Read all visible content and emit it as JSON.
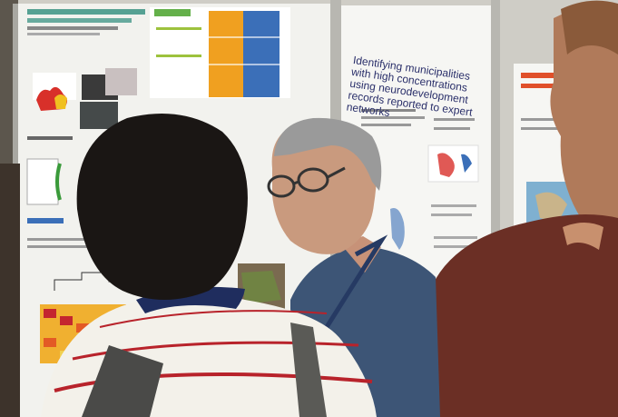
{
  "photo": {
    "poster_right_heading": "Identifying municipalities with high concentrations using neurodevelopment records reported to expert networks",
    "palette": {
      "wall": "#d9d8d2",
      "poster_bg": "#f4f4f1",
      "teal_title": "#2e8c7c",
      "heatmap_orange": "#f0a020",
      "heatmap_blue": "#3b6fb8",
      "heatmap_red": "#c4262f",
      "shirt_stripe_white": "#f3f1ea",
      "shirt_stripe_red": "#b8232b",
      "polo_blue": "#3d5576",
      "brown_shirt": "#6b2f25",
      "hair_black": "#1a1614",
      "hair_gray": "#9a9a9a"
    }
  }
}
